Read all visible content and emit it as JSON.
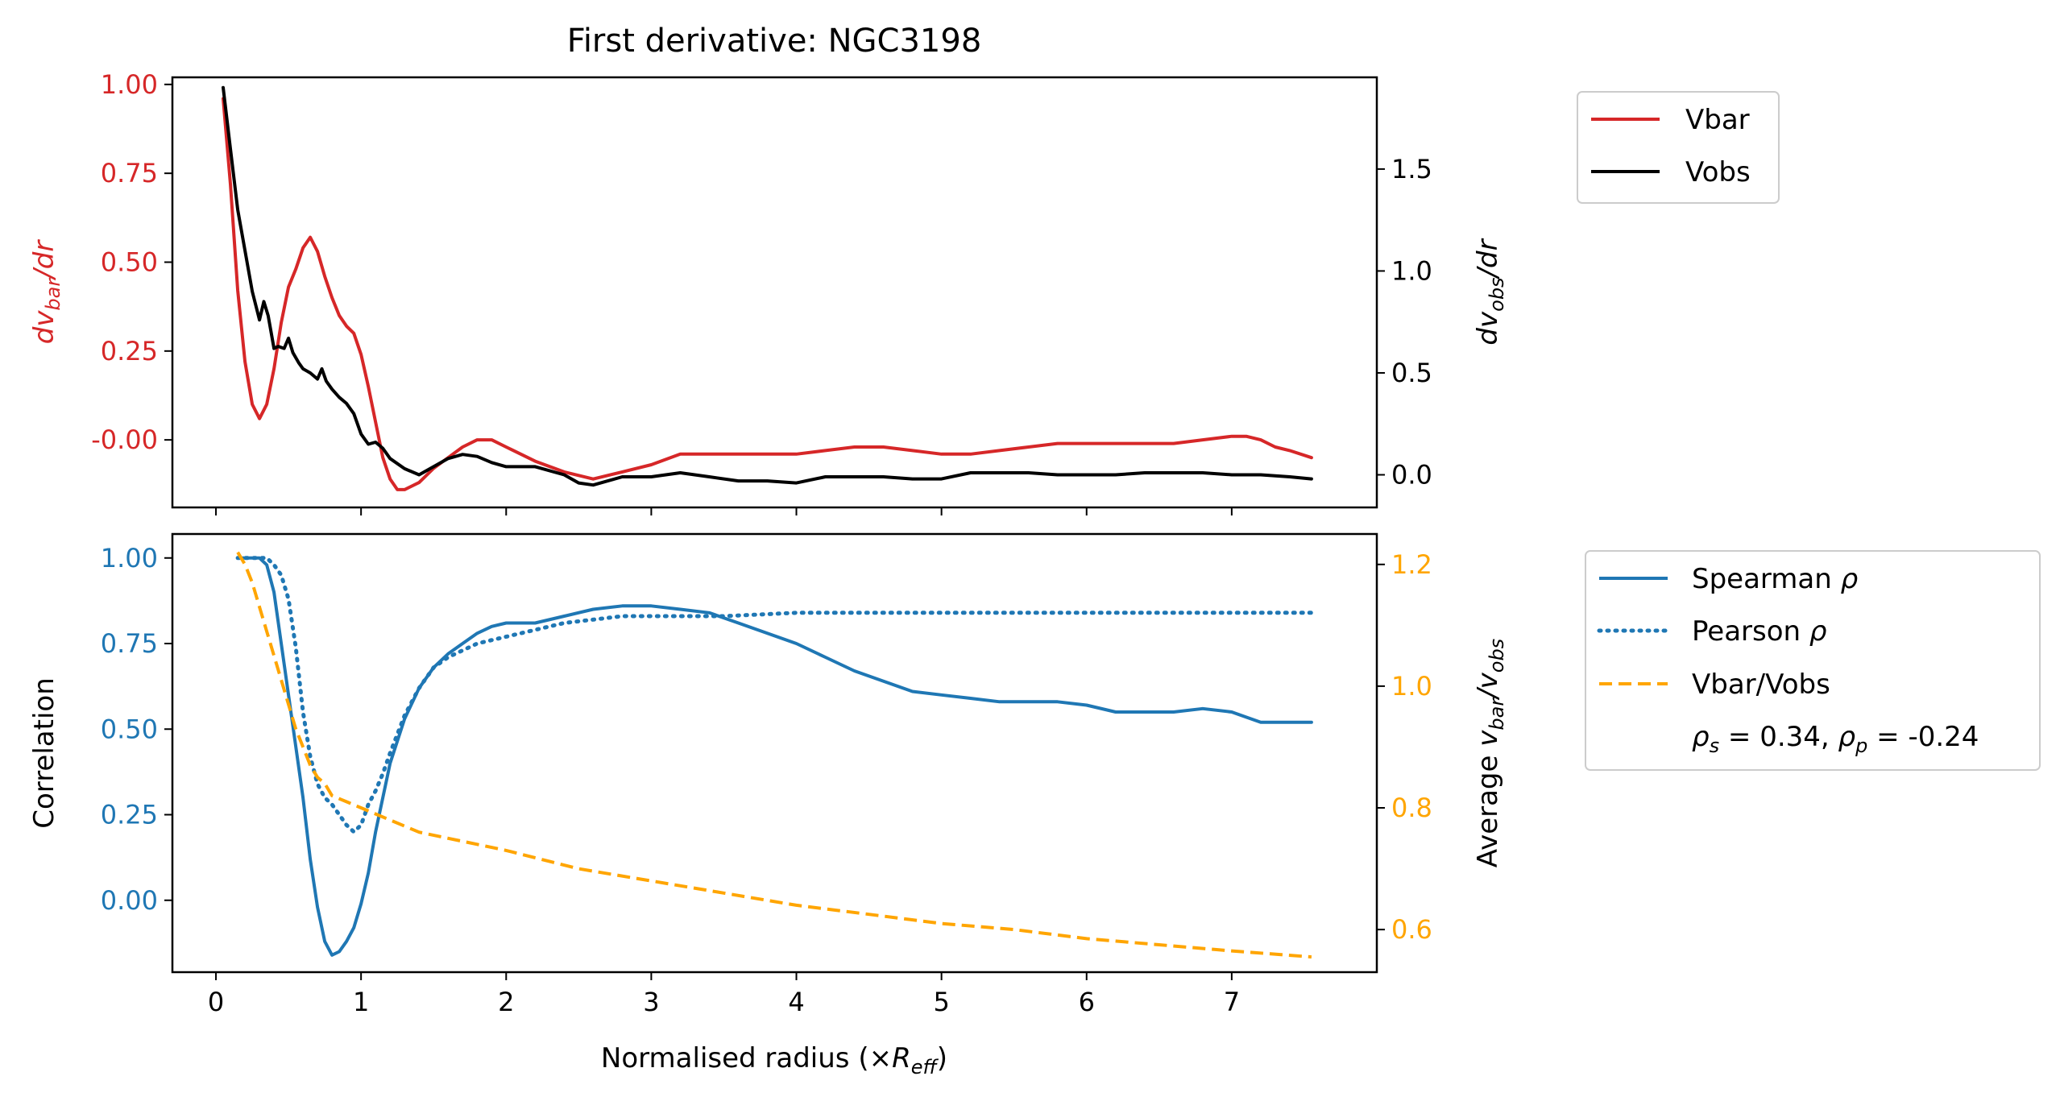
{
  "figure": {
    "title": "First derivative: NGC3198",
    "xlabel": "Normalised radius (×R_eff)"
  },
  "colors": {
    "vbar": "#d62728",
    "vobs": "#000000",
    "spearman": "#1f77b4",
    "pearson": "#1f77b4",
    "ratio": "#ffa500"
  },
  "chart_data": [
    {
      "type": "line",
      "panel": "top",
      "title": "First derivative: NGC3198",
      "ylabel_left": "dv_bar/dr",
      "ylabel_right": "dv_obs/dr",
      "xlim": [
        -0.3,
        8.0
      ],
      "ylim_left": [
        -0.19,
        1.02
      ],
      "ylim_right": [
        -0.16,
        1.95
      ],
      "xticks": [
        "0",
        "1",
        "2",
        "3",
        "4",
        "5",
        "6",
        "7"
      ],
      "yticks_left": [
        "-0.00",
        "0.25",
        "0.50",
        "0.75",
        "1.00"
      ],
      "yticks_right": [
        "0.0",
        "0.5",
        "1.0",
        "1.5"
      ],
      "legend": {
        "position": "outside-upper-right",
        "entries": [
          "Vbar",
          "Vobs"
        ]
      },
      "series": [
        {
          "name": "Vbar",
          "axis": "left",
          "style": "solid",
          "x": [
            0.05,
            0.1,
            0.15,
            0.2,
            0.25,
            0.3,
            0.35,
            0.4,
            0.45,
            0.5,
            0.55,
            0.6,
            0.65,
            0.7,
            0.75,
            0.8,
            0.85,
            0.9,
            0.95,
            1.0,
            1.05,
            1.1,
            1.15,
            1.2,
            1.25,
            1.3,
            1.4,
            1.5,
            1.6,
            1.7,
            1.8,
            1.9,
            2.0,
            2.2,
            2.4,
            2.6,
            2.8,
            3.0,
            3.2,
            3.4,
            3.6,
            3.8,
            4.0,
            4.2,
            4.4,
            4.6,
            4.8,
            5.0,
            5.2,
            5.4,
            5.6,
            5.8,
            6.0,
            6.2,
            6.4,
            6.6,
            6.8,
            7.0,
            7.1,
            7.2,
            7.3,
            7.4,
            7.55
          ],
          "y": [
            0.96,
            0.72,
            0.42,
            0.22,
            0.1,
            0.06,
            0.1,
            0.2,
            0.33,
            0.43,
            0.48,
            0.54,
            0.57,
            0.53,
            0.46,
            0.4,
            0.35,
            0.32,
            0.3,
            0.24,
            0.15,
            0.05,
            -0.05,
            -0.11,
            -0.14,
            -0.14,
            -0.12,
            -0.08,
            -0.05,
            -0.02,
            0.0,
            0.0,
            -0.02,
            -0.06,
            -0.09,
            -0.11,
            -0.09,
            -0.07,
            -0.04,
            -0.04,
            -0.04,
            -0.04,
            -0.04,
            -0.03,
            -0.02,
            -0.02,
            -0.03,
            -0.04,
            -0.04,
            -0.03,
            -0.02,
            -0.01,
            -0.01,
            -0.01,
            -0.01,
            -0.01,
            0.0,
            0.01,
            0.01,
            0.0,
            -0.02,
            -0.03,
            -0.05
          ]
        },
        {
          "name": "Vobs",
          "axis": "right",
          "style": "solid",
          "x": [
            0.05,
            0.1,
            0.15,
            0.2,
            0.25,
            0.3,
            0.33,
            0.36,
            0.4,
            0.43,
            0.47,
            0.5,
            0.53,
            0.57,
            0.6,
            0.65,
            0.7,
            0.73,
            0.76,
            0.8,
            0.85,
            0.9,
            0.95,
            1.0,
            1.05,
            1.1,
            1.15,
            1.2,
            1.3,
            1.4,
            1.5,
            1.6,
            1.7,
            1.8,
            1.9,
            2.0,
            2.2,
            2.4,
            2.5,
            2.6,
            2.7,
            2.8,
            3.0,
            3.2,
            3.4,
            3.6,
            3.8,
            4.0,
            4.2,
            4.4,
            4.6,
            4.8,
            5.0,
            5.2,
            5.4,
            5.6,
            5.8,
            6.0,
            6.2,
            6.4,
            6.6,
            6.8,
            7.0,
            7.2,
            7.4,
            7.55
          ],
          "y": [
            1.9,
            1.6,
            1.3,
            1.1,
            0.9,
            0.76,
            0.85,
            0.78,
            0.62,
            0.63,
            0.62,
            0.67,
            0.6,
            0.55,
            0.52,
            0.5,
            0.47,
            0.52,
            0.46,
            0.42,
            0.38,
            0.35,
            0.3,
            0.2,
            0.15,
            0.16,
            0.13,
            0.08,
            0.03,
            0.0,
            0.04,
            0.08,
            0.1,
            0.09,
            0.06,
            0.04,
            0.04,
            0.0,
            -0.04,
            -0.05,
            -0.03,
            -0.01,
            -0.01,
            0.01,
            -0.01,
            -0.03,
            -0.03,
            -0.04,
            -0.01,
            -0.01,
            -0.01,
            -0.02,
            -0.02,
            0.01,
            0.01,
            0.01,
            0.0,
            0.0,
            0.0,
            0.01,
            0.01,
            0.01,
            0.0,
            0.0,
            -0.01,
            -0.02
          ]
        }
      ]
    },
    {
      "type": "line",
      "panel": "bottom",
      "xlabel": "Normalised radius (×R_eff)",
      "ylabel_left": "Correlation",
      "ylabel_right": "Average v_bar/v_obs",
      "xlim": [
        -0.3,
        8.0
      ],
      "ylim_left": [
        -0.21,
        1.07
      ],
      "ylim_right": [
        0.53,
        1.25
      ],
      "xticks": [
        "0",
        "1",
        "2",
        "3",
        "4",
        "5",
        "6",
        "7"
      ],
      "yticks_left": [
        "0.00",
        "0.25",
        "0.50",
        "0.75",
        "1.00"
      ],
      "yticks_right": [
        "0.6",
        "0.8",
        "1.0",
        "1.2"
      ],
      "legend": {
        "position": "outside-upper-right",
        "entries": [
          "Spearman ρ",
          "Pearson ρ",
          "Vbar/Vobs"
        ],
        "annotation": "ρ_s = 0.34, ρ_p = -0.24"
      },
      "series": [
        {
          "name": "Spearman ρ",
          "axis": "left",
          "style": "solid",
          "x": [
            0.15,
            0.2,
            0.3,
            0.35,
            0.4,
            0.45,
            0.5,
            0.55,
            0.6,
            0.65,
            0.7,
            0.75,
            0.8,
            0.85,
            0.9,
            0.95,
            1.0,
            1.05,
            1.1,
            1.15,
            1.2,
            1.3,
            1.4,
            1.5,
            1.6,
            1.7,
            1.8,
            1.9,
            2.0,
            2.2,
            2.4,
            2.6,
            2.8,
            3.0,
            3.2,
            3.4,
            3.6,
            3.8,
            4.0,
            4.2,
            4.4,
            4.6,
            4.8,
            5.0,
            5.2,
            5.4,
            5.6,
            5.8,
            6.0,
            6.2,
            6.4,
            6.6,
            6.8,
            7.0,
            7.2,
            7.4,
            7.55
          ],
          "y": [
            1.0,
            1.0,
            1.0,
            0.98,
            0.9,
            0.75,
            0.6,
            0.45,
            0.3,
            0.12,
            -0.02,
            -0.12,
            -0.16,
            -0.15,
            -0.12,
            -0.08,
            -0.01,
            0.08,
            0.2,
            0.3,
            0.4,
            0.53,
            0.62,
            0.68,
            0.72,
            0.75,
            0.78,
            0.8,
            0.81,
            0.81,
            0.83,
            0.85,
            0.86,
            0.86,
            0.85,
            0.84,
            0.81,
            0.78,
            0.75,
            0.71,
            0.67,
            0.64,
            0.61,
            0.6,
            0.59,
            0.58,
            0.58,
            0.58,
            0.57,
            0.55,
            0.55,
            0.55,
            0.56,
            0.55,
            0.52,
            0.52,
            0.52
          ]
        },
        {
          "name": "Pearson ρ",
          "axis": "left",
          "style": "dotted",
          "x": [
            0.15,
            0.2,
            0.3,
            0.35,
            0.4,
            0.45,
            0.5,
            0.55,
            0.6,
            0.65,
            0.7,
            0.75,
            0.8,
            0.85,
            0.9,
            0.95,
            1.0,
            1.05,
            1.1,
            1.15,
            1.2,
            1.3,
            1.4,
            1.5,
            1.6,
            1.7,
            1.8,
            2.0,
            2.2,
            2.4,
            2.6,
            2.8,
            3.0,
            3.5,
            4.0,
            5.0,
            6.0,
            7.0,
            7.55
          ],
          "y": [
            1.0,
            1.0,
            1.0,
            1.0,
            0.98,
            0.95,
            0.88,
            0.74,
            0.55,
            0.42,
            0.34,
            0.3,
            0.28,
            0.25,
            0.22,
            0.2,
            0.22,
            0.28,
            0.32,
            0.37,
            0.43,
            0.54,
            0.62,
            0.68,
            0.71,
            0.73,
            0.75,
            0.77,
            0.79,
            0.81,
            0.82,
            0.83,
            0.83,
            0.83,
            0.84,
            0.84,
            0.84,
            0.84,
            0.84
          ]
        },
        {
          "name": "Vbar/Vobs",
          "axis": "right",
          "style": "dashed",
          "x": [
            0.15,
            0.2,
            0.25,
            0.3,
            0.35,
            0.4,
            0.45,
            0.5,
            0.55,
            0.6,
            0.65,
            0.7,
            0.75,
            0.8,
            0.9,
            1.0,
            1.2,
            1.4,
            1.6,
            1.8,
            2.0,
            2.5,
            3.0,
            3.5,
            4.0,
            4.5,
            5.0,
            5.5,
            6.0,
            6.5,
            7.0,
            7.55
          ],
          "y": [
            1.22,
            1.2,
            1.17,
            1.13,
            1.09,
            1.05,
            1.01,
            0.97,
            0.93,
            0.9,
            0.87,
            0.85,
            0.84,
            0.82,
            0.81,
            0.8,
            0.78,
            0.76,
            0.75,
            0.74,
            0.73,
            0.7,
            0.68,
            0.66,
            0.64,
            0.625,
            0.61,
            0.6,
            0.585,
            0.575,
            0.565,
            0.555
          ]
        }
      ]
    }
  ]
}
